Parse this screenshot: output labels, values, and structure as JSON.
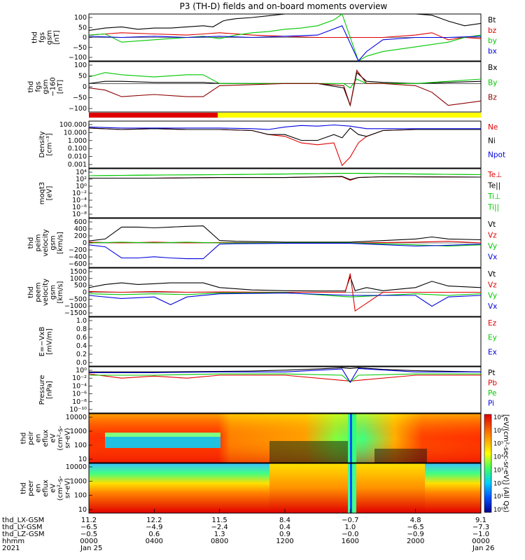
{
  "title": "P3 (TH-D) fields and on-board moments overview",
  "colors": {
    "black": "#000000",
    "red": "#e00000",
    "green": "#00c800",
    "blue": "#0000e0",
    "darkred": "#8b0000",
    "yellow": "#ffff00"
  },
  "panels": [
    {
      "key": "fgs",
      "ylabel": [
        "thd",
        "fgs",
        "gsm",
        "[nT]"
      ],
      "yticks": [
        "100",
        "50",
        "0",
        "−50",
        "−100"
      ],
      "legend": [
        {
          "text": "Bt",
          "color": "black"
        },
        {
          "text": "bz",
          "color": "red"
        },
        {
          "text": "by",
          "color": "green"
        },
        {
          "text": "bx",
          "color": "blue"
        }
      ]
    },
    {
      "key": "fgs-clip",
      "ylabel": [
        "thd",
        "fgs",
        "gsm",
        "−160",
        "[nT]"
      ],
      "yticks": [
        "100",
        "50",
        "0",
        "−50",
        "−100"
      ],
      "legend": [
        {
          "text": "Bx",
          "color": "black"
        },
        {
          "text": "By",
          "color": "green"
        },
        {
          "text": "Bz",
          "color": "darkred"
        }
      ]
    },
    {
      "key": "density",
      "ylabel": [
        "Density",
        "[cm⁻³]"
      ],
      "yticks": [
        "100.000",
        "10.000",
        "1.000",
        "0.100",
        "0.010",
        "0.001"
      ],
      "legend": [
        {
          "text": "Ne",
          "color": "red"
        },
        {
          "text": "Ni",
          "color": "black"
        },
        {
          "text": "Npot",
          "color": "blue"
        }
      ]
    },
    {
      "key": "temperature",
      "ylabel": [
        "moqt3",
        "[eV]"
      ],
      "yticks": [
        "10⁴",
        "10²",
        "10⁰",
        "10⁻²",
        "10⁻⁴",
        "10⁻⁶",
        "10⁻⁸"
      ],
      "legend": [
        {
          "text": "Te⊥",
          "color": "red"
        },
        {
          "text": "Te||",
          "color": "black"
        },
        {
          "text": "Ti⊥",
          "color": "green"
        },
        {
          "text": "Ti||",
          "color": "green"
        }
      ]
    },
    {
      "key": "peim-velocity",
      "ylabel": [
        "thd",
        "peim",
        "velocity",
        "gsm",
        "[km/s]"
      ],
      "yticks": [
        "600",
        "400",
        "200",
        "0",
        "−200",
        "−400",
        "−600"
      ],
      "legend": [
        {
          "text": "Vt",
          "color": "black"
        },
        {
          "text": "Vz",
          "color": "red"
        },
        {
          "text": "Vy",
          "color": "green"
        },
        {
          "text": "Vx",
          "color": "blue"
        }
      ]
    },
    {
      "key": "peem-velocity",
      "ylabel": [
        "thd",
        "peem",
        "velocity",
        "gsm",
        "[km/s]"
      ],
      "yticks": [
        "1500",
        "1000",
        "500",
        "0",
        "−500",
        "−1000",
        "−1500"
      ],
      "legend": [
        {
          "text": "Vt",
          "color": "black"
        },
        {
          "text": "Vz",
          "color": "red"
        },
        {
          "text": "Vy",
          "color": "green"
        },
        {
          "text": "Vx",
          "color": "blue"
        }
      ]
    },
    {
      "key": "efield",
      "ylabel": [
        "E=−VxB",
        "[mV/m]"
      ],
      "yticks": [
        "1.0",
        "0.8",
        "0.6",
        "0.4",
        "0.2",
        "0.0"
      ],
      "legend": [
        {
          "text": "Ez",
          "color": "red"
        },
        {
          "text": "Ey",
          "color": "green"
        },
        {
          "text": "Ex",
          "color": "blue"
        }
      ]
    },
    {
      "key": "pressure",
      "ylabel": [
        "Pressure",
        "[nPa]"
      ],
      "yticks": [
        "10⁰",
        "10⁻²",
        "10⁻⁴",
        "10⁻⁶",
        "10⁻⁸",
        "10⁻¹⁰"
      ],
      "legend": [
        {
          "text": "Pt",
          "color": "black"
        },
        {
          "text": "Pb",
          "color": "red"
        },
        {
          "text": "Pe",
          "color": "green"
        },
        {
          "text": "Pi",
          "color": "blue"
        }
      ]
    },
    {
      "key": "peir-eflux",
      "ylabel": [
        "thd",
        "peir",
        "en",
        "eflux",
        "eV",
        "(cm²-s-",
        "sr-eV)"
      ],
      "yticks": [
        "10000",
        "1000",
        "100",
        "10"
      ],
      "legend": []
    },
    {
      "key": "peer-eflux",
      "ylabel": [
        "thd",
        "peer",
        "en",
        "eflux",
        "eV",
        "(cm²-s-",
        "sr-eV)"
      ],
      "yticks": [
        "10000",
        "1000",
        "100",
        "10"
      ],
      "legend": []
    }
  ],
  "colorbar": {
    "ticks": [
      "10⁸",
      "10⁶",
      "10⁵",
      "10⁴",
      "10³",
      "10²",
      "10¹",
      "10⁰"
    ],
    "label": "[eV/(cm²-sec-sr-eV)] (All Qs)"
  },
  "footer": {
    "labels": [
      "thd_LX-GSM",
      "thd_LY-GSM",
      "thd_LZ-GSM",
      "hhmm",
      "2021"
    ],
    "columns": [
      [
        "11.2",
        "−6.5",
        "−0.5",
        "0000",
        "Jan 25"
      ],
      [
        "12.2",
        "−4.9",
        "0.6",
        "0400",
        ""
      ],
      [
        "11.5",
        "−2.4",
        "1.3",
        "0800",
        ""
      ],
      [
        "8.4",
        "0.4",
        "0.9",
        "1200",
        ""
      ],
      [
        "−0.7",
        "1.0",
        "−0.0",
        "1600",
        ""
      ],
      [
        "4.8",
        "−6.5",
        "−0.9",
        "2000",
        ""
      ],
      [
        "9.1",
        "−7.3",
        "−1.0",
        "0000",
        "Jan 26"
      ]
    ]
  },
  "chart_data": {
    "type": "line",
    "title": "P3 (TH-D) fields and on-board moments overview",
    "x_ticks": [
      "0000",
      "0400",
      "0800",
      "1200",
      "1600",
      "2000",
      "0000"
    ],
    "x_unit": "hhmm",
    "date_start": "2021 Jan 25",
    "date_end": "Jan 26",
    "xlim": [
      0,
      24
    ],
    "mode_bar": {
      "segments": [
        {
          "color": "red",
          "from_hour": 0,
          "to_hour": 8
        },
        {
          "color": "yellow",
          "from_hour": 8,
          "to_hour": 24
        }
      ]
    },
    "series": [
      {
        "panel": "fgs",
        "name": "Bt",
        "x": [
          0,
          1,
          2,
          3,
          4,
          5,
          6,
          7,
          7.6,
          8.2,
          8.5,
          9,
          10,
          12,
          13,
          14,
          15.5,
          16.2,
          17,
          18,
          20,
          21,
          22,
          23,
          24
        ],
        "y": [
          30,
          40,
          45,
          35,
          40,
          40,
          45,
          50,
          45,
          70,
          75,
          80,
          85,
          100,
          100,
          100,
          100,
          100,
          100,
          100,
          100,
          95,
          70,
          50,
          60
        ]
      },
      {
        "panel": "fgs",
        "name": "bz",
        "x": [
          0,
          1,
          2,
          4,
          6,
          7,
          8,
          10,
          12,
          14,
          16,
          18,
          20,
          21,
          22,
          23,
          24
        ],
        "y": [
          10,
          15,
          20,
          15,
          10,
          15,
          20,
          10,
          5,
          0,
          0,
          0,
          10,
          20,
          -10,
          0,
          -5
        ]
      },
      {
        "panel": "fgs",
        "name": "by",
        "x": [
          0,
          1,
          2,
          4,
          6,
          7,
          8,
          9,
          10,
          11,
          12,
          13,
          14,
          15,
          15.5,
          16.5,
          17,
          18,
          20,
          22,
          23,
          24
        ],
        "y": [
          10,
          15,
          -20,
          -10,
          0,
          5,
          -5,
          10,
          20,
          25,
          35,
          40,
          50,
          75,
          100,
          -100,
          -80,
          -60,
          -40,
          -20,
          0,
          10
        ]
      },
      {
        "panel": "fgs",
        "name": "bx",
        "x": [
          0,
          2,
          4,
          6,
          8,
          10,
          12,
          14,
          15.5,
          16.5,
          17,
          18,
          20,
          22,
          24
        ],
        "y": [
          5,
          0,
          5,
          0,
          5,
          0,
          5,
          10,
          50,
          -100,
          -60,
          -10,
          0,
          0,
          5
        ]
      },
      {
        "panel": "fgs-clip",
        "name": "Bx",
        "x": [
          0,
          1,
          2,
          4,
          6,
          7,
          8,
          10,
          12,
          14,
          15.6,
          16,
          16.4,
          17,
          18,
          20,
          22,
          24
        ],
        "y": [
          0,
          10,
          10,
          5,
          5,
          5,
          0,
          0,
          0,
          0,
          -20,
          -100,
          50,
          10,
          5,
          0,
          5,
          10
        ]
      },
      {
        "panel": "fgs-clip",
        "name": "By",
        "x": [
          0,
          1,
          2,
          4,
          6,
          7,
          8,
          10,
          12,
          14,
          15.6,
          16,
          16.4,
          17,
          18,
          20,
          22,
          24
        ],
        "y": [
          30,
          50,
          40,
          30,
          40,
          40,
          0,
          0,
          0,
          0,
          0,
          -20,
          20,
          0,
          0,
          0,
          10,
          20
        ]
      },
      {
        "panel": "fgs-clip",
        "name": "Bz",
        "x": [
          0,
          1,
          2,
          4,
          6,
          7,
          8,
          10,
          12,
          14,
          15.6,
          16,
          16.4,
          17,
          18,
          20,
          21,
          22,
          24
        ],
        "y": [
          -20,
          -30,
          -60,
          -50,
          -60,
          -60,
          -10,
          -5,
          0,
          0,
          -10,
          -100,
          60,
          0,
          0,
          -10,
          -40,
          -100,
          -80
        ]
      },
      {
        "panel": "density",
        "name": "Ne",
        "x": [
          0,
          2,
          4,
          6,
          8,
          10,
          11,
          12,
          13,
          14,
          15,
          15.5,
          16,
          16.5,
          17,
          18,
          20,
          24
        ],
        "y": [
          30,
          20,
          25,
          20,
          20,
          15,
          5,
          3,
          0.5,
          0.3,
          0.5,
          0.001,
          0.01,
          0.5,
          3,
          15,
          20,
          20
        ]
      },
      {
        "panel": "density",
        "name": "Ni",
        "x": [
          0,
          2,
          4,
          6,
          8,
          10,
          11,
          12,
          13,
          14,
          15,
          15.5,
          16,
          16.5,
          17,
          18,
          20,
          24
        ],
        "y": [
          30,
          20,
          25,
          20,
          20,
          15,
          5,
          5,
          1,
          1,
          5,
          2,
          30,
          5,
          3,
          15,
          20,
          20
        ]
      },
      {
        "panel": "density",
        "name": "Npot",
        "x": [
          0,
          2,
          4,
          6,
          8,
          10,
          11,
          12,
          13,
          14,
          15,
          16,
          17,
          18,
          20,
          24
        ],
        "y": [
          40,
          30,
          30,
          30,
          30,
          25,
          20,
          40,
          60,
          50,
          70,
          50,
          25,
          25,
          25,
          25
        ]
      },
      {
        "panel": "temperature",
        "name": "Te⊥",
        "x": [
          0,
          4,
          8,
          12,
          15.5,
          16,
          16.5,
          18,
          24
        ],
        "y": [
          200,
          200,
          300,
          300,
          500,
          50,
          300,
          500,
          400
        ]
      },
      {
        "panel": "temperature",
        "name": "Te||",
        "x": [
          0,
          4,
          8,
          12,
          15.5,
          16,
          16.5,
          18,
          24
        ],
        "y": [
          200,
          200,
          300,
          300,
          600,
          80,
          300,
          500,
          400
        ]
      },
      {
        "panel": "temperature",
        "name": "Ti⊥",
        "x": [
          0,
          4,
          8,
          12,
          16,
          20,
          24
        ],
        "y": [
          1000,
          1500,
          2000,
          3000,
          5000,
          3000,
          2000
        ]
      },
      {
        "panel": "temperature",
        "name": "Ti||",
        "x": [
          0,
          4,
          8,
          12,
          16,
          20,
          24
        ],
        "y": [
          1000,
          1500,
          2000,
          3000,
          5000,
          3000,
          2000
        ]
      },
      {
        "panel": "peim-velocity",
        "name": "Vt",
        "x": [
          0,
          1,
          2,
          3,
          4,
          5,
          6,
          7,
          8,
          9,
          12,
          16,
          20,
          21,
          22,
          24
        ],
        "y": [
          50,
          100,
          400,
          400,
          380,
          400,
          420,
          430,
          60,
          40,
          20,
          20,
          100,
          150,
          100,
          80
        ]
      },
      {
        "panel": "peim-velocity",
        "name": "Vz",
        "x": [
          0,
          2,
          4,
          6,
          8,
          12,
          16,
          20,
          22,
          24
        ],
        "y": [
          20,
          0,
          20,
          0,
          10,
          0,
          0,
          20,
          40,
          0
        ]
      },
      {
        "panel": "peim-velocity",
        "name": "Vy",
        "x": [
          0,
          2,
          4,
          6,
          8,
          12,
          16,
          20,
          22,
          24
        ],
        "y": [
          0,
          20,
          0,
          20,
          0,
          0,
          0,
          -50,
          -80,
          -50
        ]
      },
      {
        "panel": "peim-velocity",
        "name": "Vx",
        "x": [
          0,
          1,
          2,
          3,
          4,
          5,
          6,
          7,
          8,
          9,
          12,
          16,
          20,
          22,
          24
        ],
        "y": [
          -50,
          -100,
          -380,
          -380,
          -350,
          -380,
          -400,
          -400,
          -30,
          -20,
          -10,
          -10,
          -80,
          -60,
          -30
        ]
      },
      {
        "panel": "peem-velocity",
        "name": "Vt",
        "x": [
          0,
          1,
          2,
          3,
          4,
          5,
          6,
          7,
          8,
          10,
          12,
          14,
          15.7,
          16,
          16.3,
          17,
          18,
          20,
          21,
          22,
          24
        ],
        "y": [
          300,
          500,
          600,
          500,
          550,
          600,
          600,
          600,
          300,
          150,
          100,
          80,
          80,
          1000,
          100,
          300,
          100,
          300,
          700,
          400,
          300
        ]
      },
      {
        "panel": "peem-velocity",
        "name": "Vz",
        "x": [
          0,
          2,
          4,
          6,
          8,
          12,
          15.7,
          16,
          16.3,
          18,
          20,
          24
        ],
        "y": [
          50,
          0,
          50,
          0,
          20,
          0,
          0,
          1200,
          -1200,
          0,
          0,
          0
        ]
      },
      {
        "panel": "peem-velocity",
        "name": "Vy",
        "x": [
          0,
          2,
          4,
          6,
          8,
          12,
          16,
          20,
          22,
          24
        ],
        "y": [
          -100,
          -150,
          -100,
          -150,
          -50,
          -20,
          -300,
          -100,
          -200,
          -100
        ]
      },
      {
        "panel": "peem-velocity",
        "name": "Vx",
        "x": [
          0,
          2,
          4,
          5,
          6,
          8,
          12,
          16,
          20,
          21,
          22,
          24
        ],
        "y": [
          -200,
          -400,
          -300,
          -800,
          -300,
          -100,
          -50,
          -200,
          -200,
          -900,
          -300,
          -200
        ]
      },
      {
        "panel": "pressure",
        "name": "Pt",
        "x": [
          0,
          4,
          8,
          10,
          12,
          14,
          15.5,
          16,
          16.5,
          18,
          20,
          24
        ],
        "y": [
          0.3,
          0.3,
          0.4,
          0.5,
          0.8,
          1.5,
          3,
          2,
          3,
          1.2,
          0.6,
          0.3
        ]
      },
      {
        "panel": "pressure",
        "name": "Pb",
        "x": [
          0,
          2,
          4,
          6,
          8,
          12,
          16,
          20,
          24
        ],
        "y": [
          0.1,
          0.01,
          0.03,
          0.01,
          0.05,
          0.05,
          0.002,
          0.05,
          0.05
        ]
      },
      {
        "panel": "pressure",
        "name": "Pe",
        "x": [
          0,
          4,
          8,
          12,
          15.5,
          16,
          16.5,
          20,
          24
        ],
        "y": [
          0.05,
          0.05,
          0.1,
          0.1,
          0.05,
          0.001,
          0.05,
          0.1,
          0.1
        ]
      },
      {
        "panel": "pressure",
        "name": "Pi",
        "x": [
          0,
          4,
          8,
          12,
          15.5,
          16,
          16.5,
          20,
          24
        ],
        "y": [
          0.2,
          0.2,
          0.3,
          0.3,
          1.5,
          0.001,
          2,
          0.3,
          0.3
        ]
      }
    ]
  }
}
